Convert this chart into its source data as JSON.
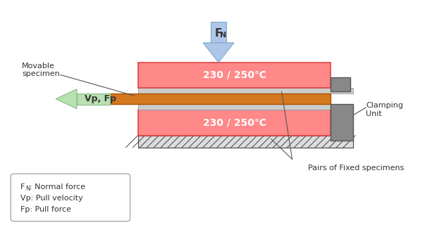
{
  "bg_color": "#ffffff",
  "fn_arrow_color": "#aec6e8",
  "fn_arrow_border": "#7aa8cc",
  "fn_label": "F",
  "fn_sub": "N",
  "vp_arrow_color": "#b8e0b0",
  "vp_arrow_border": "#88bb88",
  "vp_fp_label": "Vp, Fp",
  "plate_color": "#ff8888",
  "plate_border_color": "#dd4444",
  "plate_text_color": "#ffffff",
  "plate_text": "230 / 250℃",
  "specimen_color": "#d47820",
  "specimen_border_color": "#aa5500",
  "rail_color": "#cccccc",
  "rail_border_color": "#999999",
  "clamp_color": "#888888",
  "clamp_border_color": "#555555",
  "ground_color": "#dddddd",
  "hatch_color": "#444444",
  "line_color": "#555555",
  "text_color": "#333333",
  "legend_border_color": "#aaaaaa",
  "movable_label": "Movable\nspecimen",
  "clamping_label": "Clamping\nUnit",
  "fixed_label": "Pairs of Fixed specimens",
  "legend_fn": ": Normal force",
  "legend_vp": "Vp: Pull velocity",
  "legend_fp": "Fp: Pull force"
}
